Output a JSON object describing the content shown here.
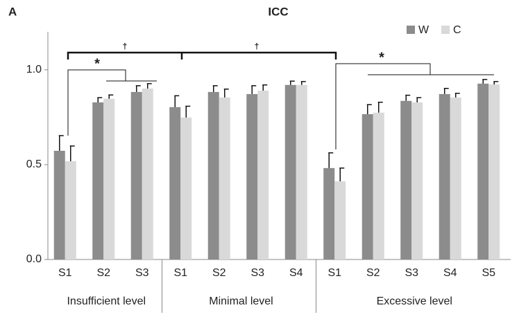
{
  "chart_data": {
    "type": "bar",
    "panel": "A",
    "title": "ICC",
    "groups": [
      {
        "name": "Insufficient level",
        "categories": [
          "S1",
          "S2",
          "S3"
        ]
      },
      {
        "name": "Minimal level",
        "categories": [
          "S1",
          "S2",
          "S3",
          "S4"
        ]
      },
      {
        "name": "Excessive level",
        "categories": [
          "S1",
          "S2",
          "S3",
          "S4",
          "S5"
        ]
      }
    ],
    "series": [
      {
        "name": "W",
        "color": "#8c8c8c",
        "values": [
          0.573,
          0.828,
          0.883,
          0.803,
          0.883,
          0.872,
          0.92,
          0.482,
          0.766,
          0.836,
          0.872,
          0.927
        ],
        "errors": [
          0.08,
          0.025,
          0.033,
          0.06,
          0.033,
          0.044,
          0.02,
          0.08,
          0.05,
          0.03,
          0.03,
          0.022
        ]
      },
      {
        "name": "C",
        "color": "#d9d9d9",
        "values": [
          0.518,
          0.847,
          0.901,
          0.748,
          0.854,
          0.89,
          0.92,
          0.412,
          0.774,
          0.828,
          0.854,
          0.923
        ],
        "errors": [
          0.08,
          0.02,
          0.026,
          0.06,
          0.044,
          0.03,
          0.018,
          0.07,
          0.055,
          0.025,
          0.022,
          0.015
        ]
      }
    ],
    "ylim": [
      0,
      1.2
    ],
    "yticks": [
      {
        "value": 0,
        "label": "0.0"
      },
      0.5,
      {
        "value": 1,
        "label": "1.0"
      }
    ],
    "annotations": [
      "†",
      "†",
      "*",
      "*"
    ]
  }
}
